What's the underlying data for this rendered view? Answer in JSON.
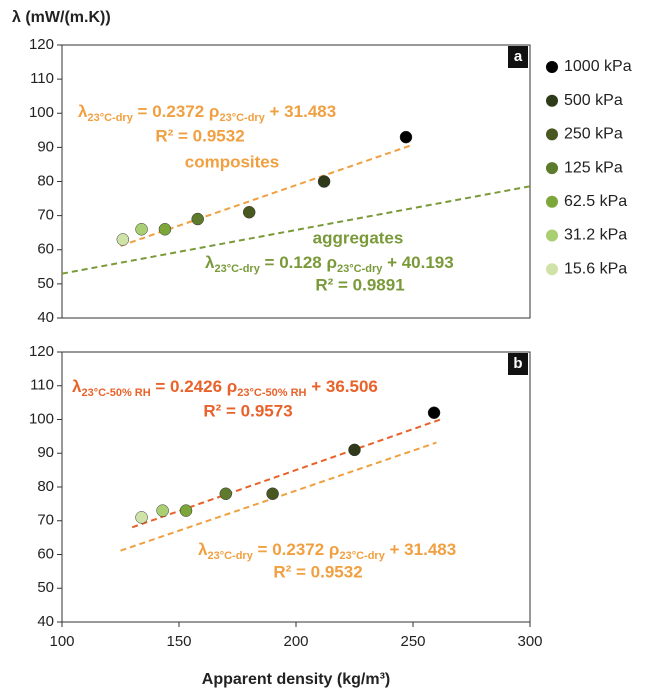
{
  "chart_data": [
    {
      "type": "scatter",
      "panel": "a",
      "y_label": "λ (mW/(m.K))",
      "xlim": [
        100,
        300
      ],
      "ylim": [
        40,
        120
      ],
      "yticks": [
        40,
        50,
        60,
        70,
        80,
        90,
        100,
        110,
        120
      ],
      "legend": "right",
      "series": [
        {
          "name": "1000 kPa",
          "color": "#000000",
          "x": [
            247
          ],
          "values": [
            93
          ]
        },
        {
          "name": "500 kPa",
          "color": "#2f3a1a",
          "x": [
            212
          ],
          "values": [
            80
          ]
        },
        {
          "name": "250 kPa",
          "color": "#48581f",
          "x": [
            180
          ],
          "values": [
            71
          ]
        },
        {
          "name": "125 kPa",
          "color": "#5e7a2c",
          "x": [
            158
          ],
          "values": [
            69
          ]
        },
        {
          "name": "62.5 kPa",
          "color": "#7da63a",
          "x": [
            144
          ],
          "values": [
            66
          ]
        },
        {
          "name": "31.2 kPa",
          "color": "#a9cf72",
          "x": [
            134
          ],
          "values": [
            66
          ]
        },
        {
          "name": "15.6 kPa",
          "color": "#cfe3a8",
          "x": [
            126
          ],
          "values": [
            63
          ]
        }
      ],
      "fits": [
        {
          "color": "#f0a040",
          "slope": 0.2372,
          "intercept": 31.483,
          "x_range": [
            125,
            250
          ],
          "equation": [
            "λ",
            "23°C-dry",
            " = 0.2372 ρ",
            "23°C-dry",
            " + 31.483"
          ],
          "r2_text": "R² = 0.9532",
          "label": "composites"
        },
        {
          "color": "#7a9a3a",
          "slope": 0.128,
          "intercept": 40.193,
          "x_range": [
            100,
            300
          ],
          "equation": [
            "λ",
            "23°C-dry",
            " = 0.128 ρ",
            "23°C-dry",
            " + 40.193"
          ],
          "r2_text": "R² = 0.9891",
          "label": "aggregates"
        }
      ]
    },
    {
      "type": "scatter",
      "panel": "b",
      "x_label": "Apparent density (kg/m³)",
      "xlim": [
        100,
        300
      ],
      "ylim": [
        40,
        120
      ],
      "xticks": [
        100,
        150,
        200,
        250,
        300
      ],
      "yticks": [
        40,
        50,
        60,
        70,
        80,
        90,
        100,
        110,
        120
      ],
      "series": [
        {
          "color": "#000000",
          "x": [
            259
          ],
          "values": [
            102
          ]
        },
        {
          "color": "#2f3a1a",
          "x": [
            225
          ],
          "values": [
            91
          ]
        },
        {
          "color": "#48581f",
          "x": [
            190
          ],
          "values": [
            78
          ]
        },
        {
          "color": "#5e7a2c",
          "x": [
            170
          ],
          "values": [
            78
          ]
        },
        {
          "color": "#7da63a",
          "x": [
            153
          ],
          "values": [
            73
          ]
        },
        {
          "color": "#a9cf72",
          "x": [
            143
          ],
          "values": [
            73
          ]
        },
        {
          "color": "#cfe3a8",
          "x": [
            134
          ],
          "values": [
            71
          ]
        }
      ],
      "fits": [
        {
          "color": "#e8622a",
          "slope": 0.2426,
          "intercept": 36.506,
          "x_range": [
            130,
            262
          ],
          "equation": [
            "λ",
            "23°C-50% RH",
            " = 0.2426 ρ",
            "23°C-50% RH",
            " + 36.506"
          ],
          "r2_text": "R² = 0.9573"
        },
        {
          "color": "#f0a040",
          "slope": 0.2372,
          "intercept": 31.483,
          "x_range": [
            125,
            260
          ],
          "equation": [
            "λ",
            "23°C-dry",
            " = 0.2372 ρ",
            "23°C-dry",
            " + 31.483"
          ],
          "r2_text": "R² = 0.9532"
        }
      ]
    }
  ]
}
